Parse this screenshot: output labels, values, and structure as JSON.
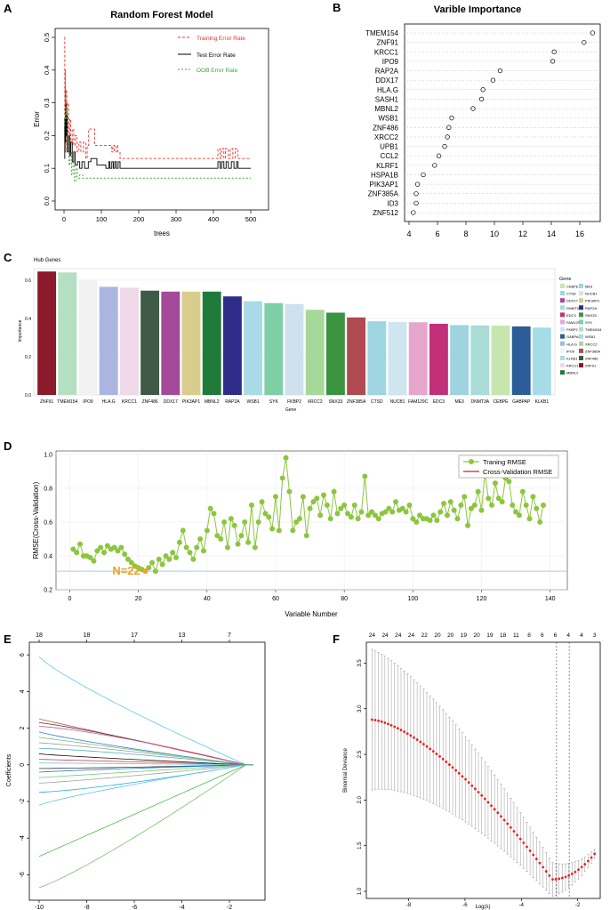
{
  "panels": {
    "A": "A",
    "B": "B",
    "C": "C",
    "D": "D",
    "E": "E",
    "F": "F"
  },
  "colors": {
    "train_error": "#e8342e",
    "test_error": "#000000",
    "oob_error": "#3aa832",
    "rmse": "#8cc63e",
    "cv_line": "#c0283a",
    "hline": "#a9cde6",
    "dev_point": "#e8211f",
    "n_label": "#f4a020"
  },
  "chart_data": [
    {
      "id": "A",
      "type": "line",
      "title": "Random Forest Model",
      "xlabel": "trees",
      "ylabel": "Error",
      "xlim": [
        0,
        500
      ],
      "ylim": [
        0,
        0.5
      ],
      "xticks": [
        "0",
        "100",
        "200",
        "300",
        "400",
        "500"
      ],
      "yticks": [
        "0.0",
        "0.1",
        "0.2",
        "0.3",
        "0.4",
        "0.5"
      ],
      "legend": [
        "Training Error Rate",
        "Test Error Rate",
        "OOB Error Rate"
      ],
      "series": [
        {
          "name": "Training Error Rate",
          "points": [
            [
              1,
              0.5
            ],
            [
              2,
              0.22
            ],
            [
              3,
              0.4
            ],
            [
              4,
              0.15
            ],
            [
              5,
              0.34
            ],
            [
              7,
              0.18
            ],
            [
              9,
              0.3
            ],
            [
              12,
              0.19
            ],
            [
              15,
              0.25
            ],
            [
              18,
              0.17
            ],
            [
              22,
              0.22
            ],
            [
              26,
              0.17
            ],
            [
              30,
              0.2
            ],
            [
              35,
              0.15
            ],
            [
              40,
              0.18
            ],
            [
              45,
              0.15
            ],
            [
              52,
              0.18
            ],
            [
              58,
              0.13
            ],
            [
              62,
              0.17
            ],
            [
              66,
              0.22
            ],
            [
              75,
              0.22
            ],
            [
              82,
              0.17
            ],
            [
              95,
              0.17
            ],
            [
              125,
              0.17
            ],
            [
              128,
              0.15
            ],
            [
              131,
              0.17
            ],
            [
              135,
              0.15
            ],
            [
              140,
              0.17
            ],
            [
              144,
              0.15
            ],
            [
              150,
              0.13
            ],
            [
              410,
              0.13
            ],
            [
              412,
              0.16
            ],
            [
              418,
              0.13
            ],
            [
              422,
              0.16
            ],
            [
              428,
              0.13
            ],
            [
              432,
              0.16
            ],
            [
              440,
              0.13
            ],
            [
              445,
              0.16
            ],
            [
              452,
              0.13
            ],
            [
              458,
              0.16
            ],
            [
              465,
              0.13
            ],
            [
              500,
              0.13
            ]
          ]
        },
        {
          "name": "Test Error Rate",
          "points": [
            [
              1,
              0.13
            ],
            [
              2,
              0.25
            ],
            [
              3,
              0.18
            ],
            [
              4,
              0.3
            ],
            [
              5,
              0.2
            ],
            [
              7,
              0.26
            ],
            [
              9,
              0.15
            ],
            [
              12,
              0.2
            ],
            [
              15,
              0.14
            ],
            [
              18,
              0.18
            ],
            [
              22,
              0.12
            ],
            [
              26,
              0.15
            ],
            [
              30,
              0.11
            ],
            [
              36,
              0.12
            ],
            [
              42,
              0.1
            ],
            [
              48,
              0.12
            ],
            [
              55,
              0.1
            ],
            [
              62,
              0.1
            ],
            [
              65,
              0.12
            ],
            [
              72,
              0.13
            ],
            [
              85,
              0.13
            ],
            [
              88,
              0.11
            ],
            [
              110,
              0.11
            ],
            [
              112,
              0.1
            ],
            [
              120,
              0.12
            ],
            [
              123,
              0.1
            ],
            [
              128,
              0.12
            ],
            [
              132,
              0.1
            ],
            [
              136,
              0.12
            ],
            [
              140,
              0.1
            ],
            [
              145,
              0.12
            ],
            [
              150,
              0.1
            ],
            [
              410,
              0.1
            ],
            [
              412,
              0.12
            ],
            [
              418,
              0.1
            ],
            [
              422,
              0.12
            ],
            [
              428,
              0.1
            ],
            [
              434,
              0.12
            ],
            [
              440,
              0.1
            ],
            [
              448,
              0.12
            ],
            [
              455,
              0.1
            ],
            [
              462,
              0.12
            ],
            [
              466,
              0.1
            ],
            [
              500,
              0.1
            ]
          ]
        },
        {
          "name": "OOB Error Rate",
          "points": [
            [
              1,
              0.23
            ],
            [
              2,
              0.26
            ],
            [
              3,
              0.35
            ],
            [
              4,
              0.25
            ],
            [
              6,
              0.28
            ],
            [
              8,
              0.18
            ],
            [
              10,
              0.2
            ],
            [
              13,
              0.11
            ],
            [
              16,
              0.15
            ],
            [
              20,
              0.08
            ],
            [
              24,
              0.12
            ],
            [
              28,
              0.06
            ],
            [
              32,
              0.1
            ],
            [
              36,
              0.07
            ],
            [
              42,
              0.08
            ],
            [
              50,
              0.07
            ],
            [
              60,
              0.07
            ],
            [
              500,
              0.07
            ]
          ]
        }
      ]
    },
    {
      "id": "B",
      "type": "scatter",
      "title": "Varible Importance",
      "xlim": [
        4,
        17
      ],
      "xticks": [
        "4",
        "6",
        "8",
        "10",
        "12",
        "14",
        "16"
      ],
      "categories": [
        "TMEM154",
        "ZNF91",
        "KRCC1",
        "IPO9",
        "RAP2A",
        "DDX17",
        "HLA.G",
        "SASH1",
        "MBNL2",
        "WSB1",
        "ZNF486",
        "XRCC2",
        "UPB1",
        "CCL2",
        "KLRF1",
        "HSPA1B",
        "PIK3AP1",
        "ZNF385A",
        "ID3",
        "ZNF512"
      ],
      "values": [
        16.9,
        16.3,
        14.2,
        14.1,
        10.4,
        9.9,
        9.2,
        9.1,
        8.5,
        7.0,
        6.8,
        6.7,
        6.5,
        6.1,
        5.8,
        5.0,
        4.6,
        4.5,
        4.5,
        4.3
      ]
    },
    {
      "id": "C",
      "type": "bar",
      "title": "Hub Genes",
      "xlabel": "Gene",
      "ylabel": "Importance",
      "ylim": [
        0,
        0.66
      ],
      "yticks": [
        "0.0",
        "0.2",
        "0.4",
        "0.6"
      ],
      "categories": [
        "ZNF91",
        "TMEM154",
        "IPO9",
        "HLA.G",
        "KRCC1",
        "ZNF486",
        "DDX17",
        "PIK3AP1",
        "MBNL2",
        "RAP2A",
        "WSB1",
        "SYK",
        "FKBP2",
        "XRCC2",
        "SNX33",
        "ZNF385A",
        "CTSD",
        "NUCB1",
        "FAM129C",
        "EDC3",
        "ME3",
        "DNMT3A",
        "CEBPE",
        "GABPAP",
        "KLKB1"
      ],
      "values": [
        0.645,
        0.64,
        0.6,
        0.565,
        0.56,
        0.545,
        0.54,
        0.54,
        0.54,
        0.515,
        0.49,
        0.48,
        0.475,
        0.445,
        0.43,
        0.405,
        0.385,
        0.382,
        0.38,
        0.372,
        0.365,
        0.363,
        0.362,
        0.358,
        0.352
      ],
      "colors": [
        "#8b1a2b",
        "#b5dfc2",
        "#f2f2f2",
        "#aab6e0",
        "#efd8e8",
        "#3f5a47",
        "#a54a9a",
        "#d9cd8d",
        "#207a3a",
        "#2e2e8a",
        "#a9dbe6",
        "#7fcfa6",
        "#cfe1ef",
        "#a6d89a",
        "#3a9440",
        "#b04a52",
        "#9fd4e2",
        "#cfe6f1",
        "#e6a6cc",
        "#c2307a",
        "#9fd3e0",
        "#a8dcd4",
        "#c6e6ae",
        "#2a5d9a",
        "#a6dce8"
      ],
      "legend_title": "Gene",
      "legend": [
        "CEBPE",
        "CTSD",
        "DDX17",
        "DNMT3A",
        "EDC3",
        "FAM129C",
        "FKBP2",
        "GABPAP",
        "HLA.G",
        "IPO9",
        "KLKB1",
        "KRCC1",
        "MBNL2",
        "ME3",
        "NUCB1",
        "PIK3AP1",
        "RAP2A",
        "SNX33",
        "SYK",
        "TMEM154",
        "WSB1",
        "XRCC2",
        "ZNF385A",
        "ZNF486",
        "ZNF91"
      ]
    },
    {
      "id": "D",
      "type": "line",
      "xlabel": "Variable Number",
      "ylabel": "RMSE(Cross-Validation)",
      "xlim": [
        -4,
        145
      ],
      "ylim": [
        0.2,
        1.02
      ],
      "xticks": [
        "0",
        "20",
        "40",
        "60",
        "80",
        "100",
        "120",
        "140"
      ],
      "yticks": [
        "0.2",
        "0.4",
        "0.6",
        "0.8",
        "1.0"
      ],
      "legend": [
        "Traning RMSE",
        "Cross-Validation RMSE"
      ],
      "annotation": "N=22",
      "annotation_x": 22,
      "hline": 0.31,
      "y": [
        0.44,
        0.42,
        0.47,
        0.4,
        0.4,
        0.39,
        0.37,
        0.43,
        0.45,
        0.42,
        0.46,
        0.44,
        0.45,
        0.43,
        0.45,
        0.41,
        0.38,
        0.36,
        0.34,
        0.33,
        0.32,
        0.31,
        0.33,
        0.36,
        0.31,
        0.38,
        0.35,
        0.4,
        0.38,
        0.42,
        0.39,
        0.48,
        0.55,
        0.45,
        0.42,
        0.38,
        0.45,
        0.5,
        0.43,
        0.55,
        0.68,
        0.65,
        0.52,
        0.5,
        0.6,
        0.45,
        0.62,
        0.58,
        0.47,
        0.52,
        0.6,
        0.48,
        0.7,
        0.45,
        0.6,
        0.72,
        0.65,
        0.63,
        0.56,
        0.75,
        0.55,
        0.86,
        0.98,
        0.78,
        0.55,
        0.6,
        0.62,
        0.75,
        0.52,
        0.68,
        0.72,
        0.74,
        0.64,
        0.76,
        0.7,
        0.62,
        0.78,
        0.65,
        0.68,
        0.7,
        0.65,
        0.63,
        0.7,
        0.62,
        0.66,
        0.87,
        0.64,
        0.66,
        0.64,
        0.62,
        0.65,
        0.66,
        0.68,
        0.66,
        0.72,
        0.67,
        0.68,
        0.66,
        0.7,
        0.62,
        0.6,
        0.64,
        0.62,
        0.62,
        0.61,
        0.64,
        0.61,
        0.66,
        0.71,
        0.64,
        0.72,
        0.67,
        0.62,
        0.7,
        0.75,
        0.58,
        0.68,
        0.7,
        0.78,
        0.67,
        0.89,
        0.74,
        0.7,
        0.83,
        0.74,
        0.72,
        0.86,
        0.84,
        0.7,
        0.66,
        0.64,
        0.78,
        0.7,
        0.62,
        0.75,
        0.68,
        0.6,
        0.7
      ]
    },
    {
      "id": "E",
      "type": "line",
      "ylabel": "Coefficients",
      "xlim": [
        -10,
        -1
      ],
      "ylim": [
        -7,
        6.3
      ],
      "xticks": [
        "-10",
        "-8",
        "-6",
        "-4",
        "-2"
      ],
      "yticks": [
        "-6",
        "-4",
        "-2",
        "0",
        "2",
        "4",
        "6"
      ],
      "top_ticks": [
        "18",
        "18",
        "17",
        "13",
        "7"
      ],
      "top_ticks_x": [
        -10,
        -8,
        -6,
        -4,
        -2
      ],
      "series": [
        {
          "start": 5.9,
          "color": "#5ec8e6"
        },
        {
          "start": 2.5,
          "color": "#e04a4a"
        },
        {
          "start": 2.3,
          "color": "#3a3a3a"
        },
        {
          "start": 2.1,
          "color": "#d45a8c"
        },
        {
          "start": 1.8,
          "color": "#2b7bd6"
        },
        {
          "start": 1.5,
          "color": "#7ac070"
        },
        {
          "start": 1.2,
          "color": "#a0a0a0"
        },
        {
          "start": 0.9,
          "color": "#4fb3b3"
        },
        {
          "start": 0.6,
          "color": "#111111"
        },
        {
          "start": 0.3,
          "color": "#d43a3a"
        },
        {
          "start": 0.1,
          "color": "#5ec8e6"
        },
        {
          "start": -0.2,
          "color": "#3a3a3a"
        },
        {
          "start": -0.4,
          "color": "#2b7bd6"
        },
        {
          "start": -0.7,
          "color": "#6bd06b"
        },
        {
          "start": -1.0,
          "color": "#a0a0a0"
        },
        {
          "start": -1.5,
          "color": "#2bb0d6"
        },
        {
          "start": -2.2,
          "color": "#5ec8e6"
        },
        {
          "start": -5.0,
          "color": "#4cba4c"
        },
        {
          "start": -6.7,
          "color": "#7ac070"
        }
      ]
    },
    {
      "id": "F",
      "type": "line",
      "xlabel": "Log(λ)",
      "ylabel": "Binomial Deviance",
      "xlim": [
        -9.5,
        -1.2
      ],
      "ylim": [
        1.0,
        3.65
      ],
      "xticks": [
        "-8",
        "-6",
        "-4",
        "-2"
      ],
      "yticks": [
        "1.0",
        "1.5",
        "2.0",
        "2.5",
        "3.0",
        "3.5"
      ],
      "top_ticks": [
        "24",
        "24",
        "24",
        "24",
        "22",
        "20",
        "20",
        "19",
        "20",
        "19",
        "18",
        "11",
        "8",
        "6",
        "6",
        "4",
        "4",
        "3"
      ],
      "vlines": [
        -2.75,
        -2.3
      ],
      "n_points": 70,
      "x_start": -9.3,
      "x_end": -1.4
    }
  ]
}
